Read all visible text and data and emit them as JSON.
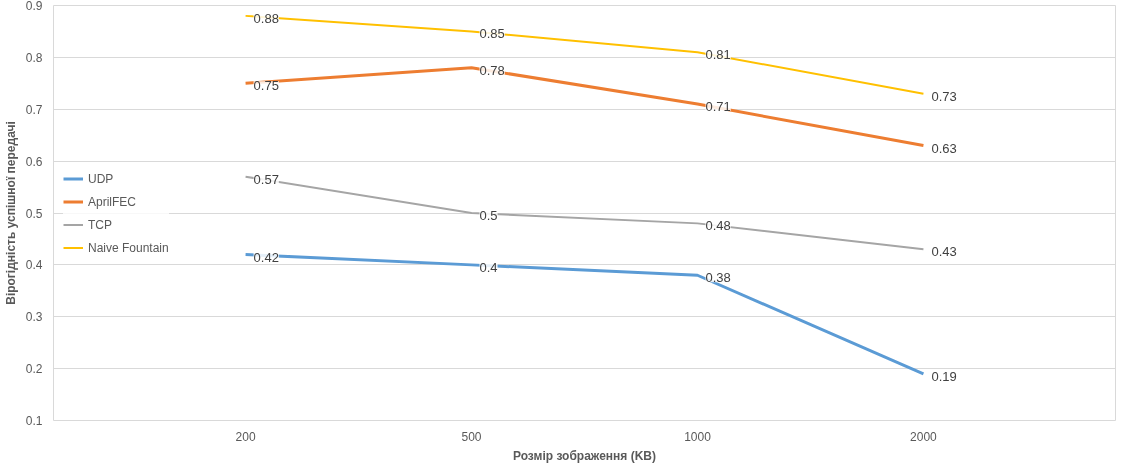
{
  "chart_data": {
    "type": "line",
    "xlabel": "Розмір зображення (KB)",
    "ylabel": "Вірогідність успішної передачі",
    "categories": [
      "200",
      "500",
      "1000",
      "2000"
    ],
    "series": [
      {
        "name": "UDP",
        "color": "#5b9bd5",
        "values": [
          0.42,
          0.4,
          0.38,
          0.19
        ]
      },
      {
        "name": "AprilFEC",
        "color": "#ed7d31",
        "values": [
          0.75,
          0.78,
          0.71,
          0.63
        ]
      },
      {
        "name": "TCP",
        "color": "#a5a5a5",
        "values": [
          0.57,
          0.5,
          0.48,
          0.43
        ]
      },
      {
        "name": "Naive Fountain",
        "color": "#ffc000",
        "values": [
          0.88,
          0.85,
          0.81,
          0.73
        ]
      }
    ],
    "ylim": [
      0.1,
      0.9
    ],
    "yticks": [
      0.1,
      0.2,
      0.3,
      0.4,
      0.5,
      0.6,
      0.7,
      0.8,
      0.9
    ],
    "grid": "y",
    "legend": "left",
    "data_labels": true,
    "marker": "none",
    "line_style": "solid"
  }
}
